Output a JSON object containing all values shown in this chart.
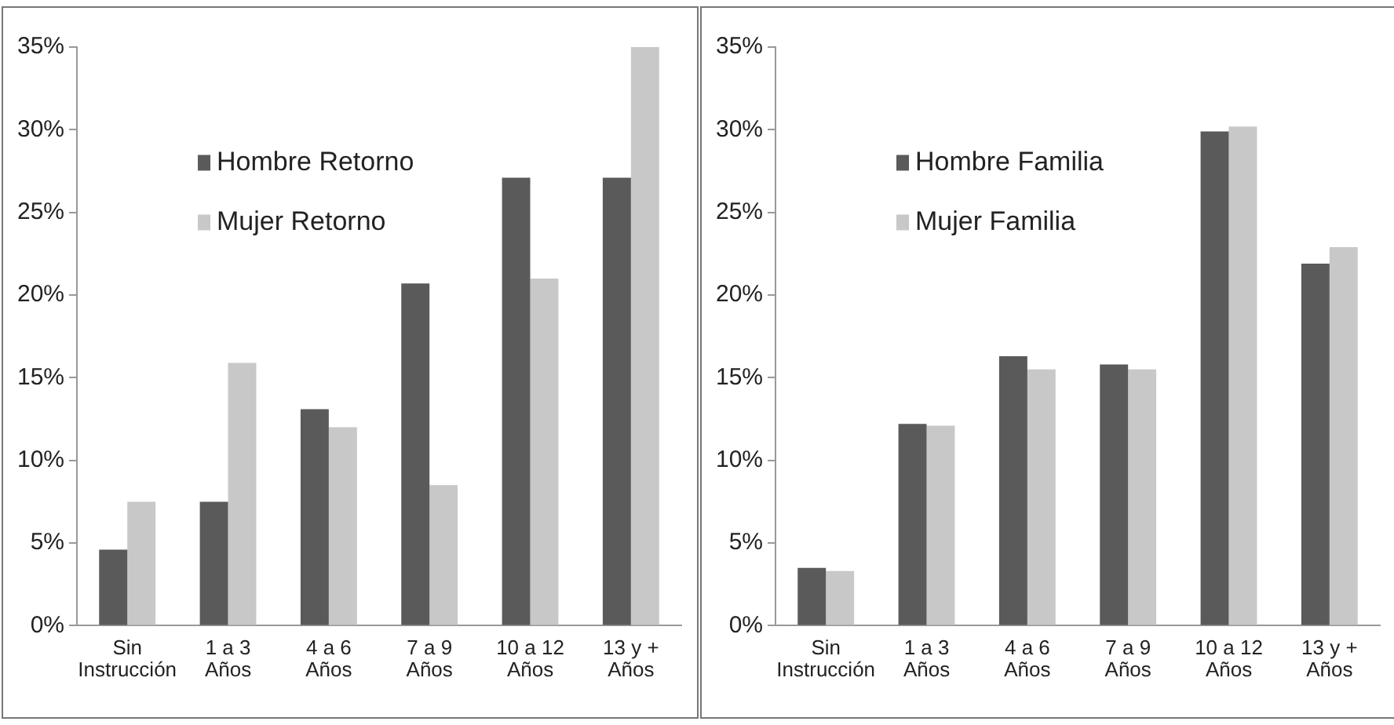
{
  "chart_data": [
    {
      "type": "bar",
      "categories": [
        "Sin\nInstrucción",
        "1 a 3\nAños",
        "4 a 6\nAños",
        "7 a 9\nAños",
        "10 a 12\nAños",
        "13 y +\nAños"
      ],
      "series": [
        {
          "name": "Hombre Retorno",
          "color": "#5a5a5a",
          "values": [
            4.6,
            7.5,
            13.1,
            20.7,
            27.1,
            27.1
          ]
        },
        {
          "name": "Mujer Retorno",
          "color": "#c8c8c8",
          "values": [
            7.5,
            15.9,
            12.0,
            8.5,
            21.0,
            35.0
          ]
        }
      ],
      "ylim": [
        0,
        35
      ],
      "yticks": [
        {
          "value": 0,
          "label": "0%"
        },
        {
          "value": 5,
          "label": "5%"
        },
        {
          "value": 10,
          "label": "10%"
        },
        {
          "value": 15,
          "label": "15%"
        },
        {
          "value": 20,
          "label": "20%"
        },
        {
          "value": 25,
          "label": "25%"
        },
        {
          "value": 30,
          "label": "30%"
        },
        {
          "value": 35,
          "label": "35%"
        }
      ],
      "grid": false,
      "legend": "top left"
    },
    {
      "type": "bar",
      "categories": [
        "Sin\nInstrucción",
        "1 a 3\nAños",
        "4 a 6\nAños",
        "7 a 9\nAños",
        "10 a 12\nAños",
        "13 y +\nAños"
      ],
      "series": [
        {
          "name": "Hombre Familia",
          "color": "#5a5a5a",
          "values": [
            3.5,
            12.2,
            16.3,
            15.8,
            29.9,
            21.9
          ]
        },
        {
          "name": "Mujer Familia",
          "color": "#c8c8c8",
          "values": [
            3.3,
            12.1,
            15.5,
            15.5,
            30.2,
            22.9
          ]
        }
      ],
      "ylim": [
        0,
        35
      ],
      "yticks": [
        {
          "value": 0,
          "label": "0%"
        },
        {
          "value": 5,
          "label": "5%"
        },
        {
          "value": 10,
          "label": "10%"
        },
        {
          "value": 15,
          "label": "15%"
        },
        {
          "value": 20,
          "label": "20%"
        },
        {
          "value": 25,
          "label": "25%"
        },
        {
          "value": 30,
          "label": "30%"
        },
        {
          "value": 35,
          "label": "35%"
        }
      ],
      "grid": false,
      "legend": "top left"
    }
  ]
}
